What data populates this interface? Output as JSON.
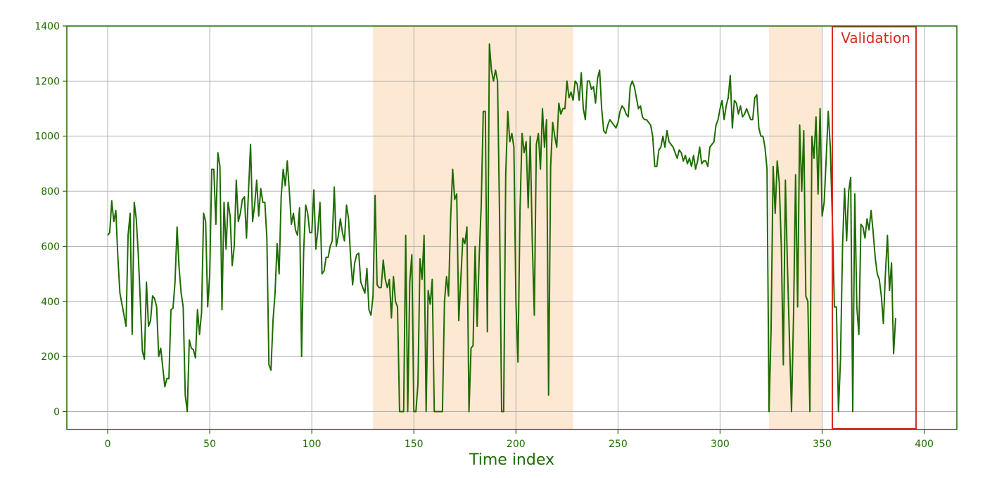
{
  "chart_data": {
    "type": "line",
    "title": "",
    "xlabel": "Time index",
    "ylabel": "",
    "xlim": [
      -20,
      416
    ],
    "ylim": [
      -65,
      1400
    ],
    "x_ticks": [
      0,
      50,
      100,
      150,
      200,
      250,
      300,
      350,
      400
    ],
    "y_ticks": [
      0,
      200,
      400,
      600,
      800,
      1000,
      1200,
      1400
    ],
    "grid": true,
    "series": [
      {
        "name": "",
        "color": "#1e6b00",
        "x_start": 0,
        "x_step": 1,
        "values": [
          640,
          650,
          765,
          690,
          730,
          560,
          430,
          390,
          350,
          310,
          640,
          720,
          280,
          760,
          700,
          570,
          400,
          220,
          190,
          470,
          310,
          330,
          420,
          410,
          380,
          200,
          230,
          160,
          90,
          120,
          120,
          370,
          375,
          470,
          670,
          520,
          430,
          380,
          60,
          0,
          260,
          230,
          225,
          195,
          370,
          280,
          360,
          720,
          690,
          380,
          500,
          880,
          880,
          680,
          940,
          890,
          370,
          760,
          590,
          760,
          710,
          530,
          600,
          840,
          690,
          720,
          770,
          780,
          630,
          800,
          970,
          690,
          750,
          840,
          710,
          810,
          760,
          760,
          630,
          170,
          150,
          330,
          430,
          610,
          500,
          780,
          880,
          820,
          910,
          800,
          680,
          720,
          660,
          640,
          740,
          200,
          580,
          750,
          720,
          650,
          650,
          805,
          590,
          660,
          760,
          500,
          510,
          560,
          560,
          600,
          620,
          815,
          600,
          640,
          700,
          650,
          620,
          750,
          700,
          560,
          460,
          540,
          570,
          575,
          470,
          450,
          430,
          520,
          370,
          350,
          420,
          785,
          460,
          450,
          450,
          550,
          480,
          450,
          480,
          340,
          490,
          400,
          380,
          0,
          0,
          0,
          640,
          0,
          470,
          570,
          0,
          0,
          100,
          555,
          480,
          640,
          0,
          440,
          390,
          480,
          0,
          0,
          0,
          0,
          0,
          400,
          490,
          420,
          700,
          880,
          770,
          790,
          330,
          480,
          630,
          610,
          670,
          0,
          230,
          240,
          600,
          310,
          560,
          750,
          1090,
          1090,
          290,
          1335,
          1240,
          1200,
          1240,
          1200,
          700,
          0,
          0,
          860,
          1090,
          980,
          1010,
          960,
          400,
          180,
          730,
          1010,
          940,
          980,
          740,
          1000,
          620,
          350,
          970,
          1010,
          880,
          1100,
          960,
          1060,
          60,
          890,
          1050,
          1000,
          960,
          1120,
          1080,
          1100,
          1100,
          1200,
          1140,
          1160,
          1130,
          1200,
          1190,
          1130,
          1230,
          1100,
          1060,
          1200,
          1200,
          1170,
          1180,
          1120,
          1210,
          1240,
          1100,
          1020,
          1010,
          1040,
          1060,
          1050,
          1040,
          1030,
          1050,
          1090,
          1110,
          1100,
          1080,
          1070,
          1180,
          1200,
          1180,
          1140,
          1100,
          1110,
          1070,
          1060,
          1060,
          1050,
          1040,
          1000,
          890,
          890,
          950,
          960,
          1000,
          960,
          1020,
          980,
          970,
          960,
          940,
          920,
          950,
          940,
          910,
          930,
          900,
          920,
          890,
          930,
          880,
          910,
          960,
          900,
          910,
          910,
          890,
          960,
          970,
          980,
          1040,
          1060,
          1100,
          1130,
          1060,
          1110,
          1140,
          1220,
          1030,
          1130,
          1120,
          1080,
          1110,
          1070,
          1080,
          1100,
          1080,
          1060,
          1060,
          1140,
          1150,
          1030,
          1000,
          1000,
          960,
          880,
          0,
          300,
          890,
          720,
          910,
          830,
          600,
          170,
          840,
          530,
          260,
          0,
          350,
          860,
          380,
          1040,
          800,
          1020,
          420,
          400,
          0,
          1000,
          920,
          1070,
          790,
          1100,
          710,
          760,
          920,
          1090,
          960,
          700,
          380,
          380,
          0,
          190,
          600,
          810,
          620,
          800,
          850,
          0,
          790,
          380,
          280,
          680,
          670,
          630,
          700,
          660,
          730,
          650,
          560,
          500,
          480,
          420,
          320,
          500,
          640,
          440,
          540,
          210,
          340
        ]
      }
    ],
    "shaded_regions": [
      {
        "x0": 130,
        "x1": 228,
        "color": "#fde8d3"
      },
      {
        "x0": 324,
        "x1": 350,
        "color": "#fde8d3"
      }
    ],
    "annotations": [
      {
        "label": "Validation",
        "x0": 355,
        "x1": 396,
        "color": "#d62b1f"
      }
    ]
  }
}
